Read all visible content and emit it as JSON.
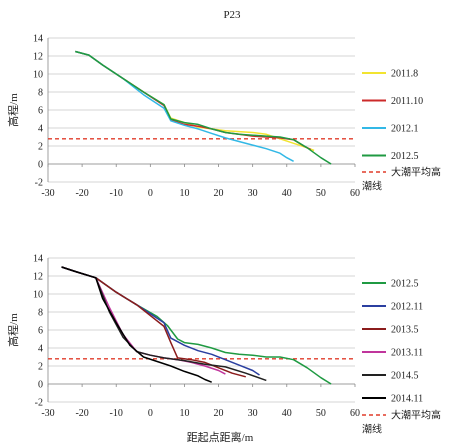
{
  "figure_title": "P23",
  "xlabel": "距起点距离/m",
  "ylabel": "高程/m",
  "chart_data": [
    {
      "type": "line",
      "title": "",
      "xlabel": "",
      "ylabel": "高程/m",
      "xlim": [
        -30,
        60
      ],
      "ylim": [
        -2,
        14
      ],
      "xticks": [
        "-30",
        "-20",
        "-10",
        "0",
        "10",
        "20",
        "30",
        "40",
        "50",
        "60"
      ],
      "yticks": [
        "-2",
        "0",
        "2",
        "4",
        "6",
        "8",
        "10",
        "12",
        "14"
      ],
      "grid": "horizontal",
      "legend_position": "right",
      "reference_line": {
        "name": "大潮平均高潮线",
        "y": 2.8,
        "color": "#e03b2a"
      },
      "series": [
        {
          "name": "2011.8",
          "color": "#f2e430",
          "x": [
            -22,
            -18,
            -14,
            -8,
            -2,
            4,
            6,
            10,
            14,
            18,
            22,
            26,
            30,
            34,
            38,
            42,
            46,
            48
          ],
          "y": [
            12.5,
            12.1,
            11.0,
            9.5,
            8.0,
            6.6,
            5.1,
            4.6,
            4.1,
            3.9,
            3.7,
            3.6,
            3.5,
            3.3,
            2.8,
            2.3,
            1.8,
            1.5
          ]
        },
        {
          "name": "2011.10",
          "color": "#cc2a2a",
          "x": [
            -22,
            -18,
            -14,
            -8,
            -2,
            4,
            6,
            10,
            14,
            18,
            22,
            26,
            30,
            34,
            38,
            42,
            45,
            47
          ],
          "y": [
            12.5,
            12.1,
            11.0,
            9.5,
            8.0,
            6.5,
            4.9,
            4.4,
            4.2,
            3.9,
            3.5,
            3.3,
            3.1,
            3.0,
            2.9,
            2.7,
            2.0,
            1.6
          ]
        },
        {
          "name": "2012.1",
          "color": "#32b8e6",
          "x": [
            -22,
            -18,
            -14,
            -8,
            -2,
            4,
            6,
            10,
            14,
            18,
            22,
            26,
            30,
            34,
            38,
            40,
            42
          ],
          "y": [
            12.5,
            12.1,
            11.0,
            9.5,
            7.7,
            6.2,
            4.8,
            4.3,
            3.9,
            3.4,
            2.9,
            2.5,
            2.1,
            1.7,
            1.2,
            0.7,
            0.3
          ]
        },
        {
          "name": "2012.5",
          "color": "#1f9a42",
          "x": [
            -22,
            -18,
            -14,
            -8,
            -2,
            4,
            6,
            10,
            14,
            18,
            22,
            26,
            30,
            34,
            38,
            42,
            46,
            50,
            53
          ],
          "y": [
            12.5,
            12.1,
            11.0,
            9.5,
            8.0,
            6.6,
            5.0,
            4.6,
            4.4,
            3.9,
            3.5,
            3.3,
            3.2,
            3.1,
            3.0,
            2.7,
            1.8,
            0.7,
            0.0
          ]
        }
      ]
    },
    {
      "type": "line",
      "title": "",
      "xlabel": "距起点距离/m",
      "ylabel": "高程/m",
      "xlim": [
        -30,
        60
      ],
      "ylim": [
        -2,
        14
      ],
      "xticks": [
        "-30",
        "-20",
        "-10",
        "0",
        "10",
        "20",
        "30",
        "40",
        "50",
        "60"
      ],
      "yticks": [
        "-2",
        "0",
        "2",
        "4",
        "6",
        "8",
        "10",
        "12",
        "14"
      ],
      "grid": "horizontal",
      "legend_position": "right",
      "reference_line": {
        "name": "大潮平均高潮线",
        "y": 2.8,
        "color": "#e03b2a"
      },
      "series": [
        {
          "name": "2012.5",
          "color": "#1f9a42",
          "x": [
            -26,
            -22,
            -16,
            -10,
            -4,
            2,
            5,
            8,
            10,
            14,
            18,
            22,
            26,
            30,
            34,
            38,
            42,
            46,
            50,
            53
          ],
          "y": [
            13.0,
            12.5,
            11.8,
            10.2,
            8.8,
            7.5,
            6.5,
            5.0,
            4.6,
            4.4,
            4.0,
            3.5,
            3.3,
            3.2,
            3.0,
            3.0,
            2.7,
            1.8,
            0.7,
            0.0
          ]
        },
        {
          "name": "2012.11",
          "color": "#2b3fa0",
          "x": [
            -26,
            -22,
            -16,
            -10,
            -4,
            0,
            4,
            6,
            10,
            14,
            18,
            22,
            26,
            30,
            32
          ],
          "y": [
            13.0,
            12.5,
            11.8,
            10.2,
            8.8,
            7.8,
            6.8,
            5.1,
            4.3,
            3.7,
            3.3,
            2.7,
            2.1,
            1.5,
            1.0
          ]
        },
        {
          "name": "2013.5",
          "color": "#8b1c1c",
          "x": [
            -26,
            -22,
            -16,
            -10,
            -4,
            0,
            4,
            6,
            8,
            12,
            16,
            20,
            24,
            28
          ],
          "y": [
            13.0,
            12.5,
            11.8,
            10.2,
            8.8,
            7.6,
            6.4,
            4.6,
            2.9,
            2.7,
            2.4,
            1.8,
            1.2,
            0.8
          ]
        },
        {
          "name": "2013.11",
          "color": "#c0359c",
          "x": [
            -26,
            -22,
            -16,
            -12,
            -8,
            -4,
            0,
            4,
            8,
            12,
            16,
            20,
            22
          ],
          "y": [
            13.0,
            12.5,
            11.8,
            8.5,
            5.5,
            3.6,
            3.2,
            2.9,
            2.7,
            2.4,
            2.0,
            1.5,
            1.1
          ]
        },
        {
          "name": "2014.5",
          "color": "#222222",
          "x": [
            -26,
            -22,
            -16,
            -12,
            -8,
            -4,
            0,
            4,
            10,
            16,
            22,
            28,
            34
          ],
          "y": [
            13.0,
            12.5,
            11.8,
            8.0,
            5.2,
            3.6,
            3.2,
            2.9,
            2.6,
            2.2,
            1.9,
            1.2,
            0.4
          ]
        },
        {
          "name": "2014.11",
          "color": "#000000",
          "x": [
            -26,
            -22,
            -16,
            -14,
            -10,
            -6,
            -2,
            2,
            6,
            10,
            14,
            16,
            18
          ],
          "y": [
            13.0,
            12.5,
            11.8,
            9.5,
            6.8,
            4.3,
            3.0,
            2.5,
            2.0,
            1.4,
            0.9,
            0.5,
            0.2
          ]
        }
      ]
    }
  ]
}
